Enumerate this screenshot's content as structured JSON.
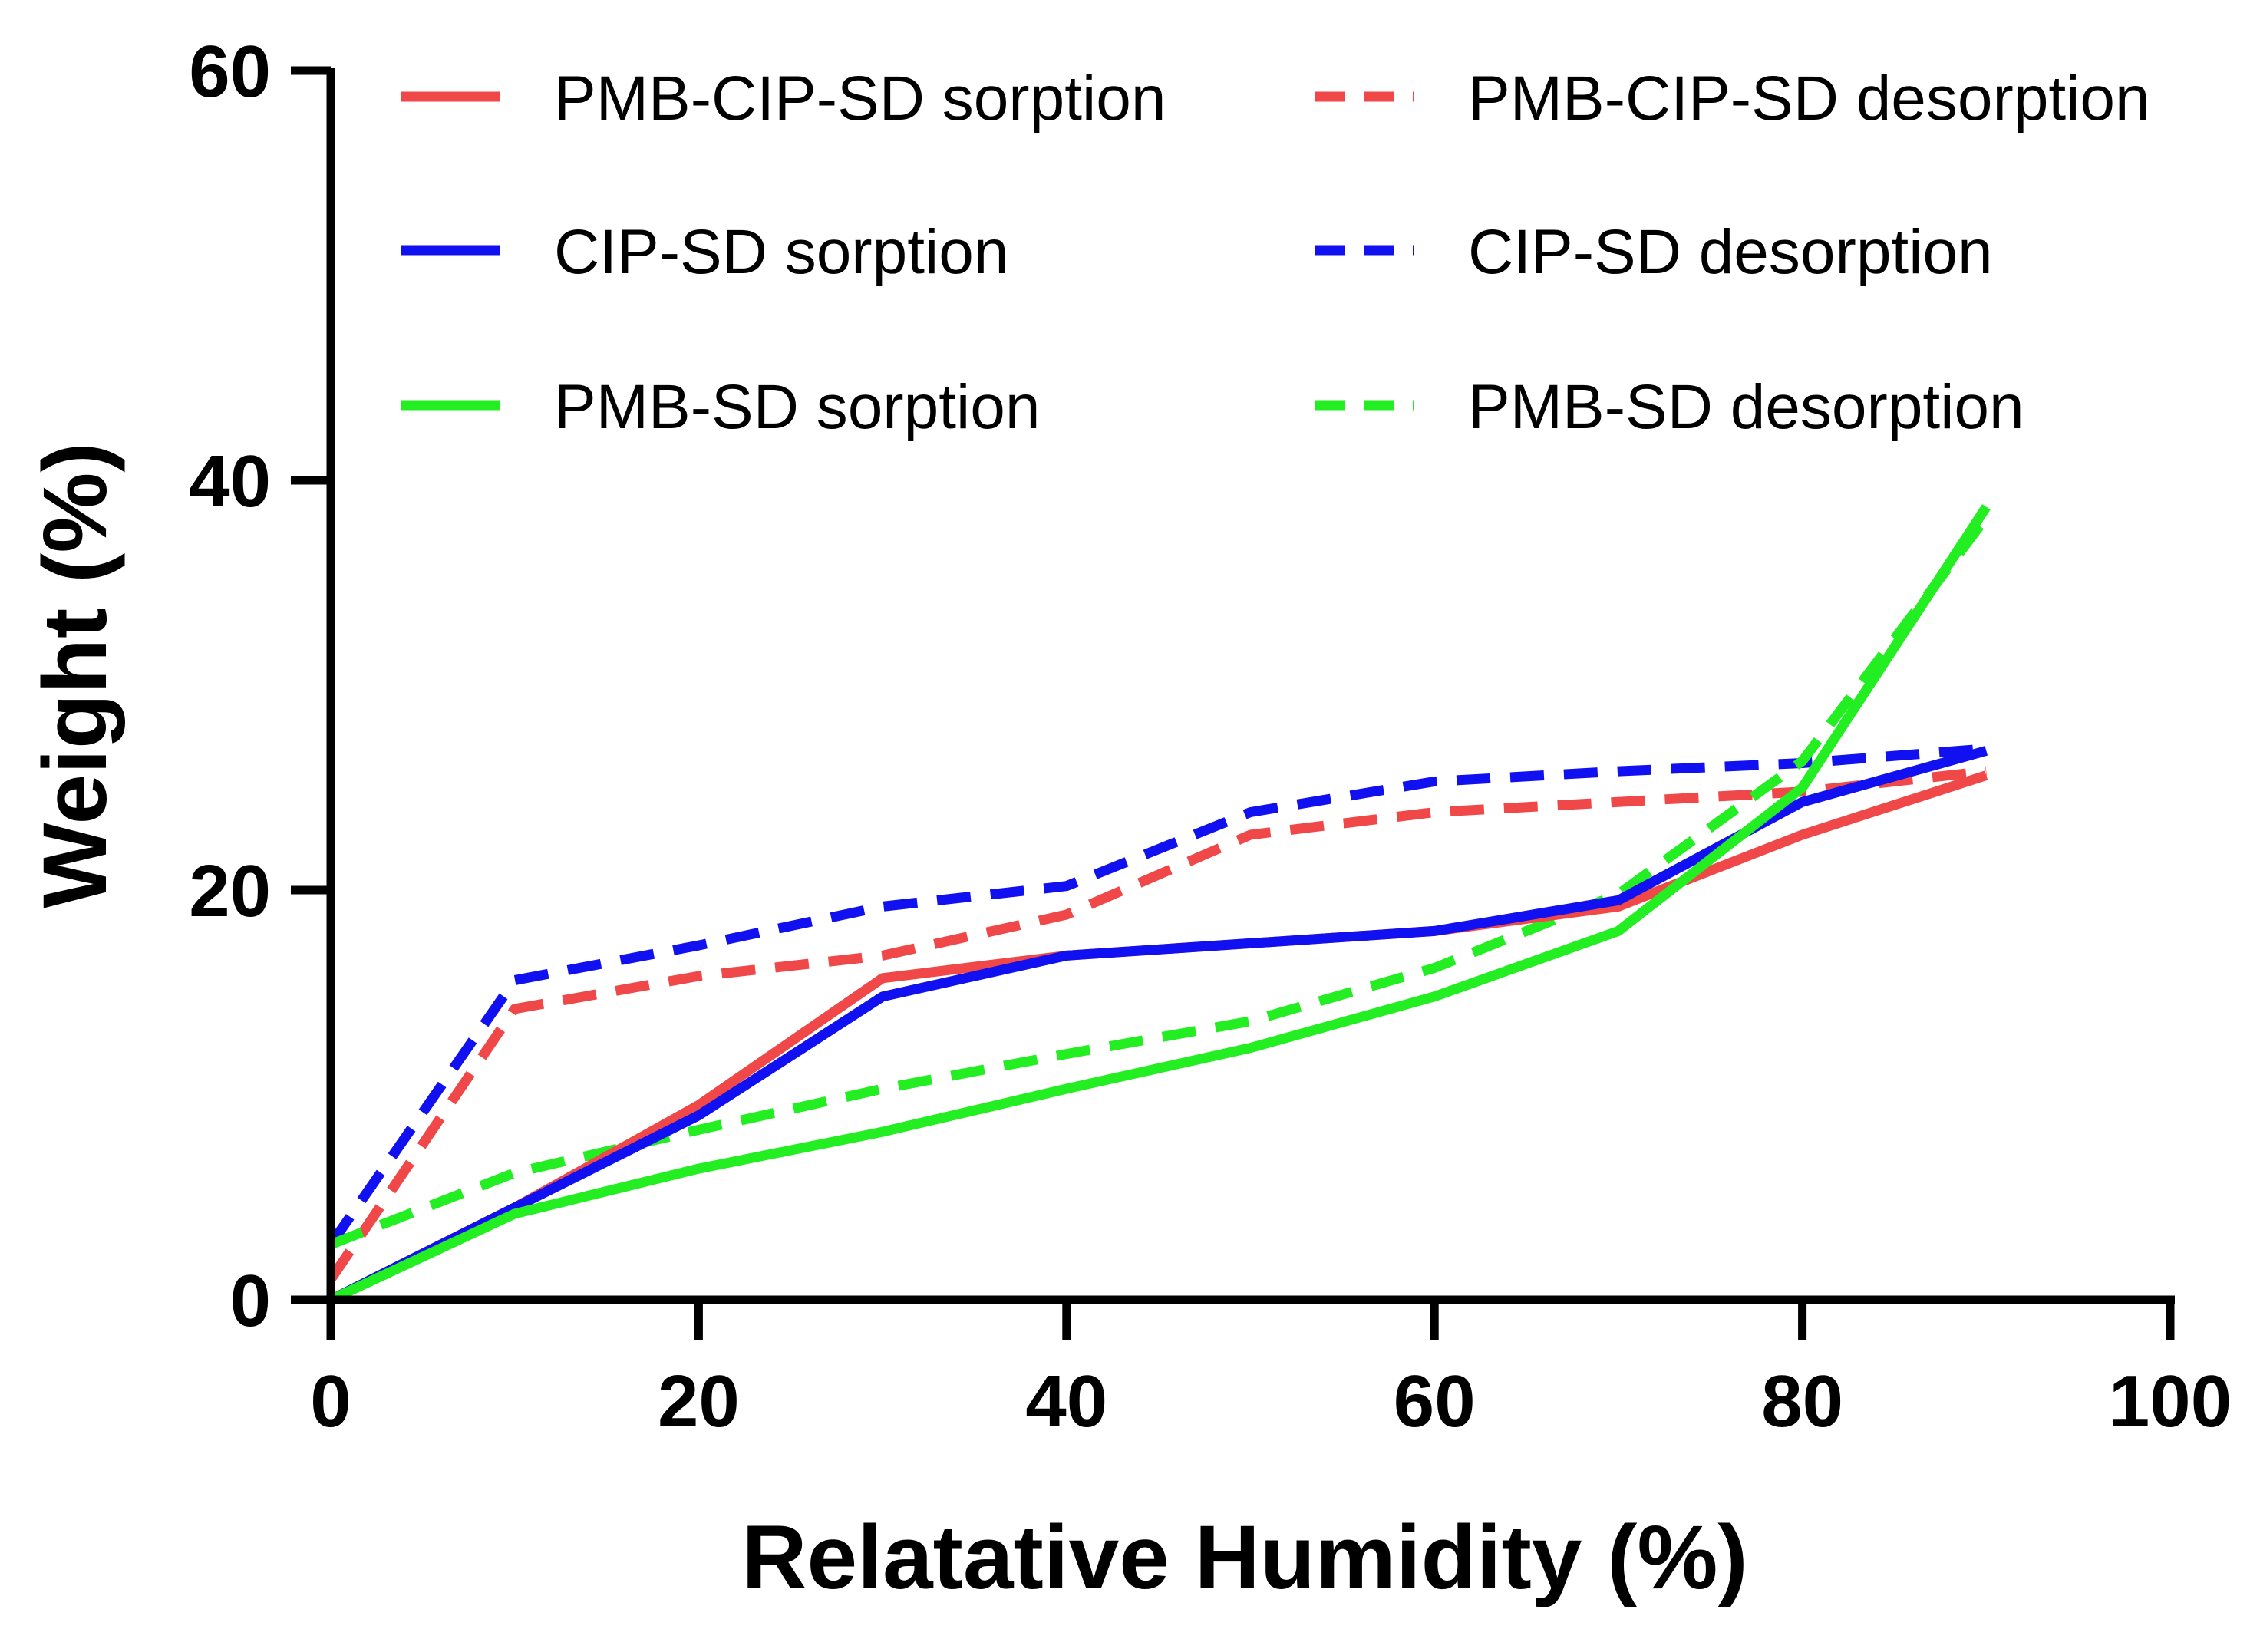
{
  "chart_data": {
    "type": "line",
    "title": "",
    "xlabel": "Relatative Humidity (%)",
    "ylabel": "Weight (%)",
    "xlim": [
      0,
      100
    ],
    "ylim": [
      0,
      60
    ],
    "xticks": [
      0,
      20,
      40,
      60,
      80,
      100
    ],
    "yticks": [
      0,
      20,
      40,
      60
    ],
    "grid": false,
    "legend_position": "top",
    "series": [
      {
        "name": "PMB-CIP-SD sorption",
        "color": "#f04848",
        "style": "solid",
        "x": [
          0,
          10,
          20,
          30,
          40,
          50,
          60,
          70,
          80,
          90
        ],
        "y": [
          0,
          4.5,
          9.5,
          15.7,
          16.8,
          17.4,
          18.0,
          19.2,
          22.7,
          25.6
        ]
      },
      {
        "name": "CIP-SD sorption",
        "color": "#1010f0",
        "style": "solid",
        "x": [
          0,
          10,
          20,
          30,
          40,
          50,
          60,
          70,
          80,
          90
        ],
        "y": [
          0,
          4.5,
          9.0,
          14.8,
          16.8,
          17.4,
          18.0,
          19.5,
          24.3,
          26.8
        ]
      },
      {
        "name": "PMB-SD sorption",
        "color": "#22ee22",
        "style": "solid",
        "x": [
          0,
          10,
          20,
          30,
          40,
          50,
          60,
          70,
          80,
          90
        ],
        "y": [
          0,
          4.2,
          6.4,
          8.2,
          10.3,
          12.3,
          14.8,
          18.0,
          25.0,
          38.7
        ]
      },
      {
        "name": "PMB-CIP-SD desorption",
        "color": "#f04848",
        "style": "dashed",
        "x": [
          0,
          10,
          20,
          30,
          40,
          50,
          60,
          70,
          80,
          90
        ],
        "y": [
          1.0,
          14.2,
          15.8,
          16.8,
          18.8,
          22.7,
          23.8,
          24.3,
          24.8,
          25.8
        ]
      },
      {
        "name": "CIP-SD desorption",
        "color": "#1010f0",
        "style": "dashed",
        "x": [
          0,
          10,
          20,
          30,
          40,
          50,
          60,
          70,
          80,
          90
        ],
        "y": [
          2.7,
          15.6,
          17.3,
          19.2,
          20.2,
          23.8,
          25.3,
          25.8,
          26.2,
          26.9
        ]
      },
      {
        "name": "PMB-SD desorption",
        "color": "#22ee22",
        "style": "dashed",
        "x": [
          0,
          10,
          20,
          30,
          40,
          50,
          60,
          70,
          80,
          90
        ],
        "y": [
          2.7,
          6.2,
          8.3,
          10.3,
          12.0,
          13.6,
          16.2,
          19.8,
          26.3,
          38.2
        ]
      }
    ]
  }
}
